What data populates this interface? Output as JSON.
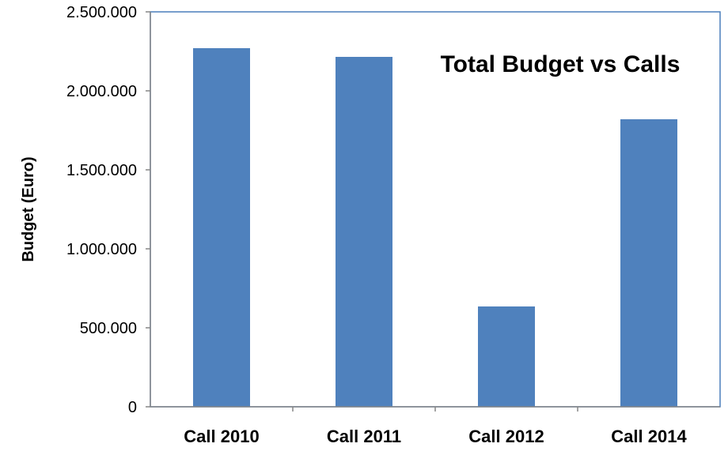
{
  "chart_data": {
    "type": "bar",
    "title": "Total Budget vs Calls",
    "xlabel": "",
    "ylabel": "Budget (Euro)",
    "categories": [
      "Call 2010",
      "Call 2011",
      "Call 2012",
      "Call 2014"
    ],
    "values": [
      2270000,
      2215000,
      635000,
      1820000
    ],
    "ylim": [
      0,
      2500000
    ],
    "yticks": [
      0,
      500000,
      1000000,
      1500000,
      2000000,
      2500000
    ],
    "ytick_labels": [
      "0",
      "500.000",
      "1.000.000",
      "1.500.000",
      "2.000.000",
      "2.500.000"
    ],
    "grid": false,
    "legend": "none",
    "colors": {
      "bar": "#4F81BD",
      "axis": "#868686",
      "plot_border": "#4A7EBB"
    }
  }
}
